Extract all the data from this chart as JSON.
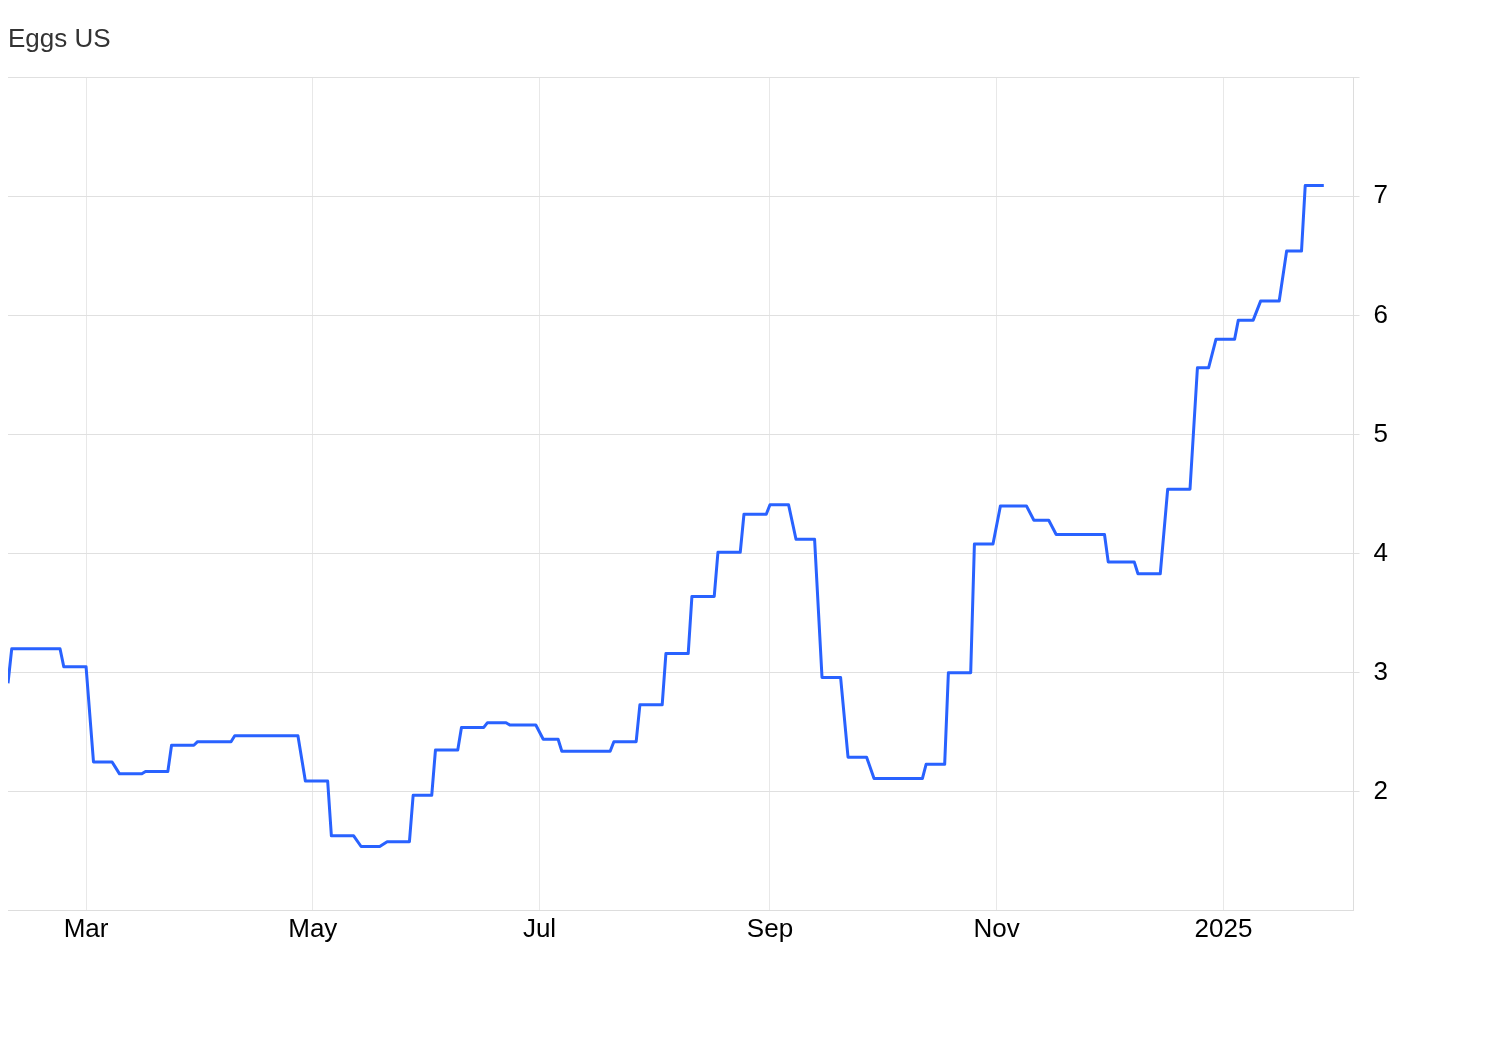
{
  "chart_data": {
    "type": "line",
    "title": "Eggs US",
    "x": [
      "2024-02-09",
      "2024-02-10",
      "2024-02-23",
      "2024-02-24",
      "2024-03-01",
      "2024-03-03",
      "2024-03-08",
      "2024-03-10",
      "2024-03-16",
      "2024-03-17",
      "2024-03-23",
      "2024-03-24",
      "2024-03-30",
      "2024-03-31",
      "2024-04-09",
      "2024-04-10",
      "2024-04-27",
      "2024-04-29",
      "2024-05-05",
      "2024-05-06",
      "2024-05-12",
      "2024-05-14",
      "2024-05-19",
      "2024-05-21",
      "2024-05-27",
      "2024-05-28",
      "2024-06-02",
      "2024-06-03",
      "2024-06-09",
      "2024-06-10",
      "2024-06-16",
      "2024-06-17",
      "2024-06-22",
      "2024-06-23",
      "2024-06-30",
      "2024-07-02",
      "2024-07-06",
      "2024-07-07",
      "2024-07-20",
      "2024-07-21",
      "2024-07-27",
      "2024-07-28",
      "2024-08-03",
      "2024-08-04",
      "2024-08-10",
      "2024-08-11",
      "2024-08-17",
      "2024-08-18",
      "2024-08-24",
      "2024-08-25",
      "2024-08-31",
      "2024-09-01",
      "2024-09-06",
      "2024-09-08",
      "2024-09-13",
      "2024-09-15",
      "2024-09-20",
      "2024-09-22",
      "2024-09-27",
      "2024-09-29",
      "2024-10-12",
      "2024-10-13",
      "2024-10-18",
      "2024-10-19",
      "2024-10-25",
      "2024-10-26",
      "2024-10-31",
      "2024-11-02",
      "2024-11-09",
      "2024-11-11",
      "2024-11-15",
      "2024-11-17",
      "2024-11-30",
      "2024-12-01",
      "2024-12-08",
      "2024-12-09",
      "2024-12-15",
      "2024-12-17",
      "2024-12-23",
      "2024-12-25",
      "2024-12-28",
      "2024-12-30",
      "2025-01-04",
      "2025-01-05",
      "2025-01-09",
      "2025-01-11",
      "2025-01-16",
      "2025-01-18",
      "2025-01-22",
      "2025-01-23",
      "2025-01-28"
    ],
    "series": [
      {
        "color": "#2962ff",
        "values": [
          2.91,
          3.2,
          3.2,
          3.05,
          3.05,
          2.25,
          2.25,
          2.15,
          2.15,
          2.17,
          2.17,
          2.39,
          2.39,
          2.42,
          2.42,
          2.47,
          2.47,
          2.09,
          2.09,
          1.63,
          1.63,
          1.54,
          1.54,
          1.58,
          1.58,
          1.97,
          1.97,
          2.35,
          2.35,
          2.54,
          2.54,
          2.58,
          2.58,
          2.56,
          2.56,
          2.44,
          2.44,
          2.34,
          2.34,
          2.42,
          2.42,
          2.73,
          2.73,
          3.16,
          3.16,
          3.64,
          3.64,
          4.01,
          4.01,
          4.33,
          4.33,
          4.41,
          4.41,
          4.12,
          4.12,
          2.96,
          2.96,
          2.29,
          2.29,
          2.11,
          2.11,
          2.23,
          2.23,
          3.0,
          3.0,
          4.08,
          4.08,
          4.4,
          4.4,
          4.28,
          4.28,
          4.16,
          4.16,
          3.93,
          3.93,
          3.83,
          3.83,
          4.54,
          4.54,
          5.56,
          5.56,
          5.8,
          5.8,
          5.96,
          5.96,
          6.12,
          6.12,
          6.54,
          6.54,
          7.09,
          7.09
        ]
      }
    ],
    "xlim": [
      "2024-02-09",
      "2025-02-05"
    ],
    "xticks": [
      {
        "value": "2024-03-01",
        "label": "Mar"
      },
      {
        "value": "2024-05-01",
        "label": "May"
      },
      {
        "value": "2024-07-01",
        "label": "Jul"
      },
      {
        "value": "2024-09-01",
        "label": "Sep"
      },
      {
        "value": "2024-11-01",
        "label": "Nov"
      },
      {
        "value": "2025-01-01",
        "label": "2025"
      }
    ],
    "ylim": [
      1,
      8
    ],
    "yticks": [
      2,
      3,
      4,
      5,
      6,
      7,
      {
        "value": 8,
        "label": null
      }
    ],
    "grid": true,
    "marker": "none"
  }
}
